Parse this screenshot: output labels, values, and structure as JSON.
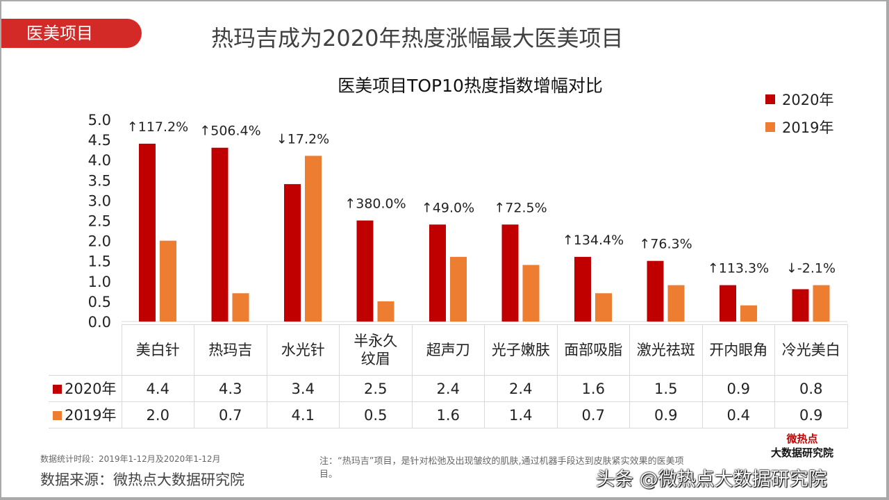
{
  "tag": "医美项目",
  "title": "热玛吉成为2020年热度涨幅最大医美项目",
  "chart_data": {
    "type": "bar",
    "title": "医美项目TOP10热度指数增幅对比",
    "categories": [
      "美白针",
      "热玛吉",
      "水光针",
      "半永久纹眉",
      "超声刀",
      "光子嫩肤",
      "面部吸脂",
      "激光祛斑",
      "开内眼角",
      "冷光美白"
    ],
    "series": [
      {
        "name": "2020年",
        "color": "#c00000",
        "values": [
          4.4,
          4.3,
          3.4,
          2.5,
          2.4,
          2.4,
          1.6,
          1.5,
          0.9,
          0.8
        ]
      },
      {
        "name": "2019年",
        "color": "#ed7d31",
        "values": [
          2.0,
          0.7,
          4.1,
          0.5,
          1.6,
          1.4,
          0.7,
          0.9,
          0.4,
          0.9
        ]
      }
    ],
    "annotations": [
      "↑117.2%",
      "↑506.4%",
      "↓17.2%",
      "↑380.0%",
      "↑49.0%",
      "↑72.5%",
      "↑134.4%",
      "↑76.3%",
      "↑113.3%",
      "↓-2.1%"
    ],
    "yticks": [
      "0.0",
      "0.5",
      "1.0",
      "1.5",
      "2.0",
      "2.5",
      "3.0",
      "3.5",
      "4.0",
      "4.5",
      "5.0"
    ],
    "ylim": [
      0,
      5
    ],
    "legend": "top-right",
    "grid": false
  },
  "footer": {
    "period": "数据统计时段：2019年1-12月及2020年1-12月",
    "source": "数据来源：微热点大数据研究院",
    "note": "注：“热玛吉”项目，是针对松弛及出现皱纹的肌肤,通过机器手段达到皮肤紧实效果的医美项目。",
    "logo_line1": "微热点",
    "logo_line2": "大数据研究院",
    "watermark": "头条 @微热点大数据研究院"
  }
}
